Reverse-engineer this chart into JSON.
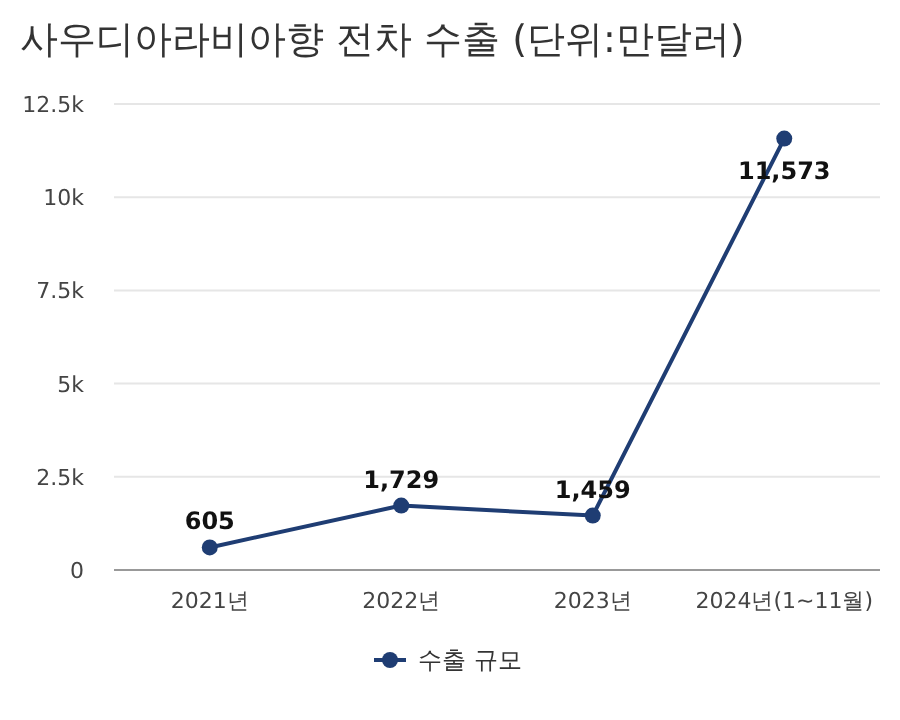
{
  "chart_data": {
    "type": "line",
    "title": "사우디아라비아향 전차 수출 (단위:만달러)",
    "categories": [
      "2021년",
      "2022년",
      "2023년",
      "2024년(1~11월)"
    ],
    "series": [
      {
        "name": "수출 규모",
        "color": "#1f3d73",
        "values": [
          605,
          1729,
          1459,
          11573
        ],
        "value_labels": [
          "605",
          "1,729",
          "1,459",
          "11,573"
        ]
      }
    ],
    "ylim": [
      0,
      12500
    ],
    "yticks": [
      0,
      {
        "value": 2500,
        "label": "2.5k"
      },
      {
        "value": 5000,
        "label": "5k"
      },
      {
        "value": 7500,
        "label": "7.5k"
      },
      {
        "value": 10000,
        "label": "10k"
      },
      {
        "value": 12500,
        "label": "12.5k"
      }
    ],
    "grid": "y",
    "legend": "bottom",
    "marker": "circle",
    "line_style": "solid"
  }
}
